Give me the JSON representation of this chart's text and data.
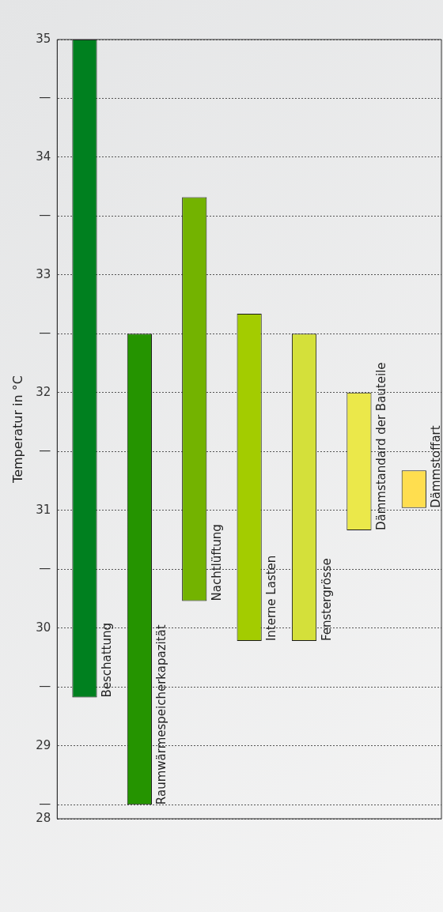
{
  "chart_data": {
    "type": "bar",
    "ylabel": "Temperatur in °C",
    "categories": [
      "Beschattung",
      "Raumwärmespeicherkapazität",
      "Nachtlüftung",
      "Interne Lasten",
      "Fenstergrösse",
      "Dämmstandard der Bauteile",
      "Dämmstoffart"
    ],
    "base": [
      29.41,
      28.5,
      30.23,
      29.89,
      29.89,
      30.83,
      31.02
    ],
    "values": [
      5.59,
      4.0,
      3.43,
      2.78,
      2.61,
      1.17,
      0.32
    ],
    "colors": [
      "#00801f",
      "#259400",
      "#73b300",
      "#a3cc00",
      "#d4e03a",
      "#ebe84a",
      "#ffde4f"
    ],
    "ylim": [
      28.38,
      35
    ],
    "yticks": [
      {
        "value": 28.38,
        "label": "28"
      },
      {
        "value": 28.5,
        "label": "—"
      },
      29,
      {
        "value": 29.5,
        "label": "—"
      },
      30,
      {
        "value": 30.5,
        "label": "—"
      },
      31,
      {
        "value": 31.5,
        "label": "—"
      },
      32,
      {
        "value": 32.5,
        "label": "—"
      },
      33,
      {
        "value": 33.5,
        "label": "—"
      },
      34,
      {
        "value": 34.5,
        "label": "—"
      },
      35
    ],
    "grid": "y",
    "tick_labels": "y"
  }
}
